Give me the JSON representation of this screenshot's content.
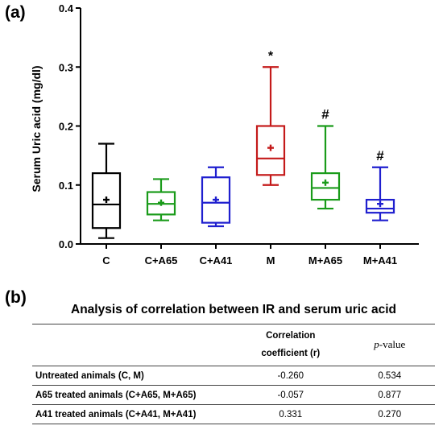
{
  "panel_a_label": "(a)",
  "panel_b_label": "(b)",
  "chart_data": {
    "type": "box",
    "ylabel": "Serum Uric acid (mg/dl)",
    "ylim": [
      0.0,
      0.4
    ],
    "yticks": [
      "0.0",
      "0.1",
      "0.2",
      "0.3",
      "0.4"
    ],
    "categories": [
      "C",
      "C+A65",
      "C+A41",
      "M",
      "M+A65",
      "M+A41"
    ],
    "colors": [
      "#000000",
      "#1a9b1a",
      "#1f1fcf",
      "#c41a1a",
      "#1a9b1a",
      "#1f1fcf"
    ],
    "boxes": [
      {
        "min": 0.01,
        "q1": 0.027,
        "median": 0.067,
        "q3": 0.12,
        "max": 0.17,
        "mean": 0.075,
        "mark": ""
      },
      {
        "min": 0.04,
        "q1": 0.05,
        "median": 0.068,
        "q3": 0.088,
        "max": 0.11,
        "mean": 0.07,
        "mark": ""
      },
      {
        "min": 0.03,
        "q1": 0.036,
        "median": 0.07,
        "q3": 0.113,
        "max": 0.13,
        "mean": 0.075,
        "mark": ""
      },
      {
        "min": 0.1,
        "q1": 0.117,
        "median": 0.145,
        "q3": 0.2,
        "max": 0.3,
        "mean": 0.163,
        "mark": "*"
      },
      {
        "min": 0.06,
        "q1": 0.075,
        "median": 0.095,
        "q3": 0.12,
        "max": 0.2,
        "mean": 0.104,
        "mark": "#"
      },
      {
        "min": 0.04,
        "q1": 0.053,
        "median": 0.06,
        "q3": 0.075,
        "max": 0.13,
        "mean": 0.068,
        "mark": "#"
      }
    ]
  },
  "table": {
    "title": "Analysis of correlation between IR and serum uric acid",
    "header_r_line1": "Correlation",
    "header_r_line2": "coefficient (r)",
    "header_p_symbol": "p",
    "header_p_suffix": "-value",
    "rows": [
      {
        "group": "Untreated animals (C, M)",
        "r": "-0.260",
        "p": "0.534"
      },
      {
        "group": "A65 treated animals (C+A65, M+A65)",
        "r": "-0.057",
        "p": "0.877"
      },
      {
        "group": "A41 treated animals (C+A41, M+A41)",
        "r": "0.331",
        "p": "0.270"
      }
    ]
  }
}
